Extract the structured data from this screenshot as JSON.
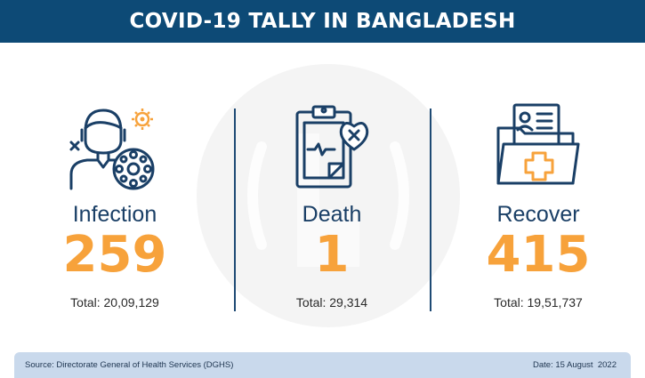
{
  "header": {
    "title": "COVID-19 TALLY IN BANGLADESH"
  },
  "colors": {
    "header_bg": "#0d4a76",
    "accent": "#f7a23b",
    "text_dark": "#1a3f66",
    "footer_bg": "#c9d9ec"
  },
  "stats": [
    {
      "label": "Infection",
      "value": "259",
      "total": "Total: 20,09,129",
      "icon": "virus-patient-icon"
    },
    {
      "label": "Death",
      "value": "1",
      "total": "Total: 29,314",
      "icon": "clipboard-heart-icon"
    },
    {
      "label": "Recover",
      "value": "415",
      "total": "Total: 19,51,737",
      "icon": "medical-folder-icon"
    }
  ],
  "footer": {
    "source": "Source: Directorate General of Health Services (DGHS)",
    "date": "Date: 15 August  2022"
  }
}
